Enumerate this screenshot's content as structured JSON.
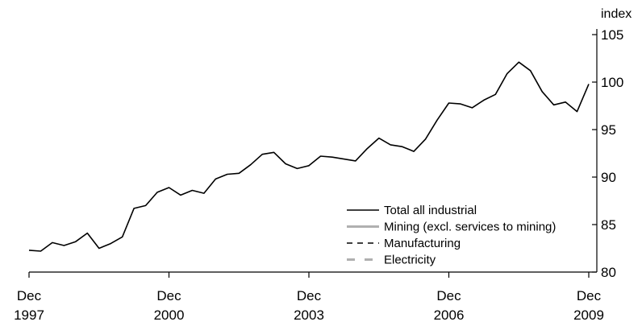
{
  "chart_data": {
    "type": "line",
    "title": "",
    "xlabel": "",
    "ylabel": "index",
    "ylim": [
      80,
      105
    ],
    "yticks": [
      80,
      85,
      90,
      95,
      100,
      105
    ],
    "y_axis_side": "right",
    "grid": false,
    "legend_position": "bottom-right",
    "x_start": "Dec 1997",
    "x_end": "Dec 2009",
    "x_frequency": "quarterly",
    "xticks": [
      {
        "month": "Dec",
        "year": "1997",
        "index": 0
      },
      {
        "month": "Dec",
        "year": "2000",
        "index": 12
      },
      {
        "month": "Dec",
        "year": "2003",
        "index": 24
      },
      {
        "month": "Dec",
        "year": "2006",
        "index": 36
      },
      {
        "month": "Dec",
        "year": "2009",
        "index": 48
      }
    ],
    "series": [
      {
        "name": "Total all industrial",
        "style": "solid-black",
        "color": "#000000",
        "values": [
          82.3,
          82.2,
          83.1,
          82.8,
          83.2,
          84.1,
          82.5,
          83.0,
          83.7,
          86.7,
          87.0,
          88.4,
          88.9,
          88.1,
          88.6,
          88.3,
          89.8,
          90.3,
          90.4,
          91.3,
          92.4,
          92.6,
          91.4,
          90.9,
          91.2,
          92.2,
          92.1,
          91.9,
          91.7,
          93.0,
          94.1,
          93.4,
          93.2,
          92.7,
          94.0,
          96.0,
          97.8,
          97.7,
          97.3,
          98.1,
          98.7,
          100.9,
          102.1,
          101.2,
          99.0,
          97.6,
          97.9,
          96.9,
          99.8
        ]
      },
      {
        "name": "Mining (excl. services to mining)",
        "style": "solid-grey",
        "color": "#b0b0b0",
        "values": []
      },
      {
        "name": "Manufacturing",
        "style": "dashed-black",
        "color": "#000000",
        "values": []
      },
      {
        "name": "Electricity",
        "style": "dashed-grey",
        "color": "#b0b0b0",
        "values": []
      }
    ]
  }
}
